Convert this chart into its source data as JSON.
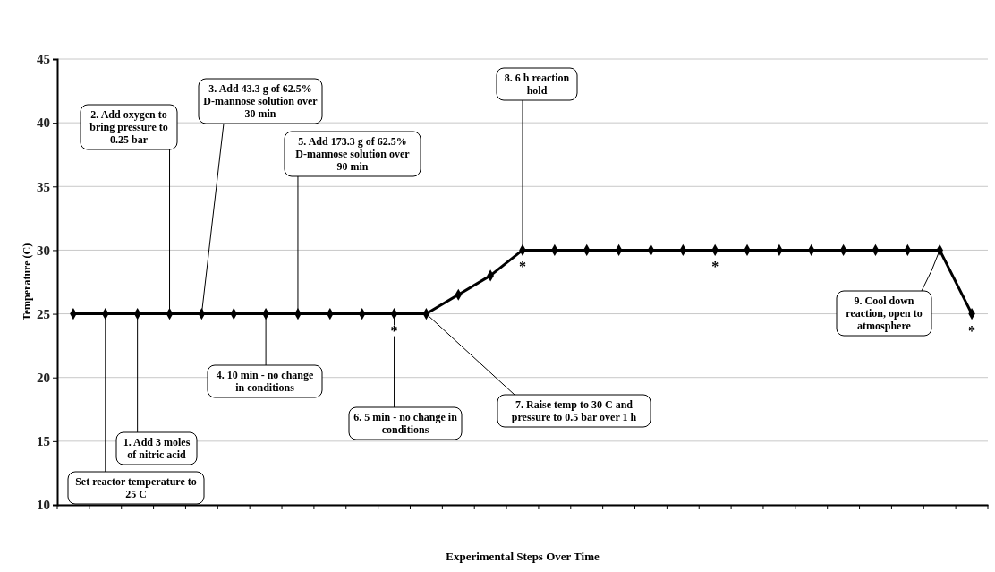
{
  "chart_data": {
    "type": "line",
    "xlabel": "Experimental Steps Over Time",
    "ylabel": "Temperature (C)",
    "categories": [
      null,
      null,
      null,
      null,
      null,
      null,
      null,
      null,
      null,
      null,
      null,
      null,
      null,
      null,
      null,
      null,
      null,
      null,
      null,
      null,
      null,
      null,
      null,
      null,
      null,
      null,
      null,
      null,
      null
    ],
    "series": [
      {
        "color": "#000000",
        "values": [
          25,
          25,
          25,
          25,
          25,
          25,
          25,
          25,
          25,
          25,
          25,
          25,
          26.5,
          28,
          30,
          30,
          30,
          30,
          30,
          30,
          30,
          30,
          30,
          30,
          30,
          30,
          30,
          30,
          25
        ]
      }
    ],
    "ylim": [
      10,
      45
    ],
    "yticks": [
      10,
      15,
      20,
      25,
      30,
      35,
      40,
      45
    ],
    "grid": "y",
    "marker": "diamond",
    "line_style": "solid",
    "annotations": [
      "Set reactor temperature to 25 C",
      "1.  Add 3 moles of nitric acid",
      "2.  Add oxygen to bring pressure to 0.25 bar",
      "3.  Add 43.3 g of 62.5% D-mannose solution over 30 min",
      "4.  10 min - no change in conditions",
      "5.  Add 173.3 g of 62.5% D-mannose solution over 90 min",
      "6.  5 min - no change in conditions",
      "7.  Raise temp to 30 C and pressure to 0.5 bar over 1 h",
      "8.  6 h reaction hold",
      "9.  Cool down reaction, open to atmosphere",
      {
        "text": "*",
        "y": 25
      },
      {
        "text": "*",
        "y": 30
      },
      {
        "text": "*",
        "y": 30
      },
      {
        "text": "*",
        "y": 25
      }
    ]
  }
}
